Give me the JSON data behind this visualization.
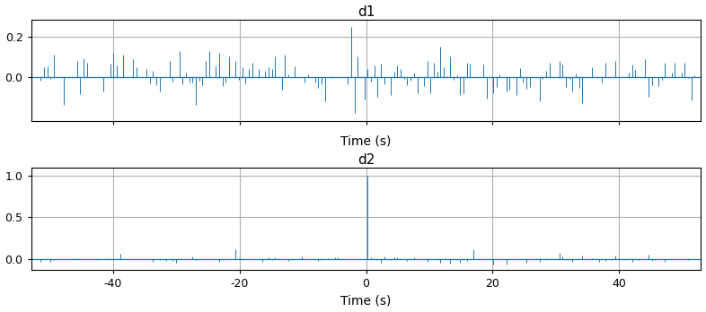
{
  "title_d1": "d1",
  "title_d2": "d2",
  "xlabel": "Time (s)",
  "line_color": "#1f77b4",
  "fig_width": 7.86,
  "fig_height": 3.48,
  "dpi": 100,
  "grid_color": "#b0b0b0",
  "background_color": "#ffffff",
  "d1_ylim": [
    -0.22,
    0.285
  ],
  "d2_ylim": [
    -0.13,
    1.09
  ],
  "d1_yticks": [
    0.0,
    0.2
  ],
  "d2_yticks": [
    0.0,
    0.5,
    1.0
  ],
  "xlim": [
    -53,
    53
  ],
  "xticks": [
    -40,
    -20,
    0,
    20,
    40
  ],
  "n_points": 200,
  "seed_d1": 12345,
  "seed_d2": 9999
}
